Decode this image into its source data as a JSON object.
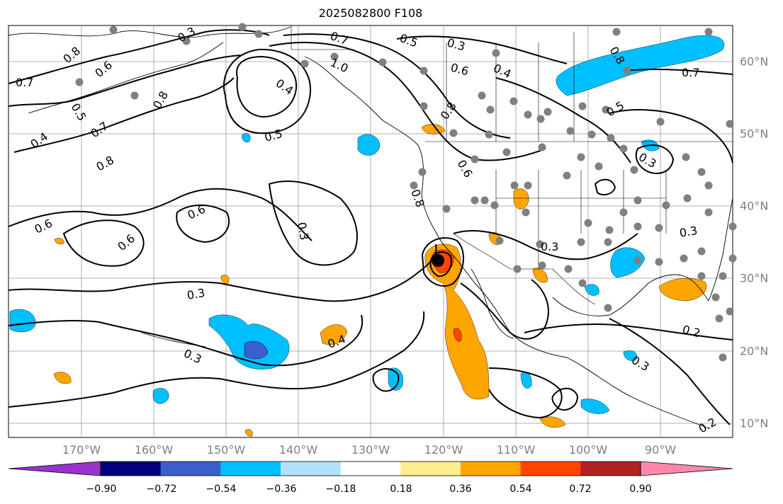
{
  "title": "2025082800 F108",
  "map": {
    "projection": "Mercator",
    "lon_range": [
      -180,
      -80
    ],
    "lat_range": [
      8,
      65
    ],
    "lon_labels": [
      "170°W",
      "160°W",
      "150°W",
      "140°W",
      "130°W",
      "120°W",
      "110°W",
      "100°W",
      "90°W"
    ],
    "lat_labels": [
      "60°N",
      "50°N",
      "40°N",
      "30°N",
      "20°N",
      "10°N"
    ],
    "contour_labels": [
      "0.7",
      "0.8",
      "0.6",
      "0.5",
      "0.4",
      "0.3",
      "1.0",
      "0.2"
    ],
    "marker": {
      "name": "storm center",
      "lon": -120,
      "lat": 32.5,
      "color": "#000000"
    },
    "station_color": "#808080"
  },
  "colorbar": {
    "ticks": [
      "−0.90",
      "−0.72",
      "−0.54",
      "−0.36",
      "−0.18",
      "0.18",
      "0.36",
      "0.54",
      "0.72",
      "0.90"
    ],
    "colors": [
      "#9932cc",
      "#000080",
      "#3a5fcd",
      "#00bfff",
      "#b0e2ff",
      "#ffffff",
      "#ffec8b",
      "#ffa500",
      "#ff4500",
      "#b22222",
      "#ff88aa"
    ]
  }
}
